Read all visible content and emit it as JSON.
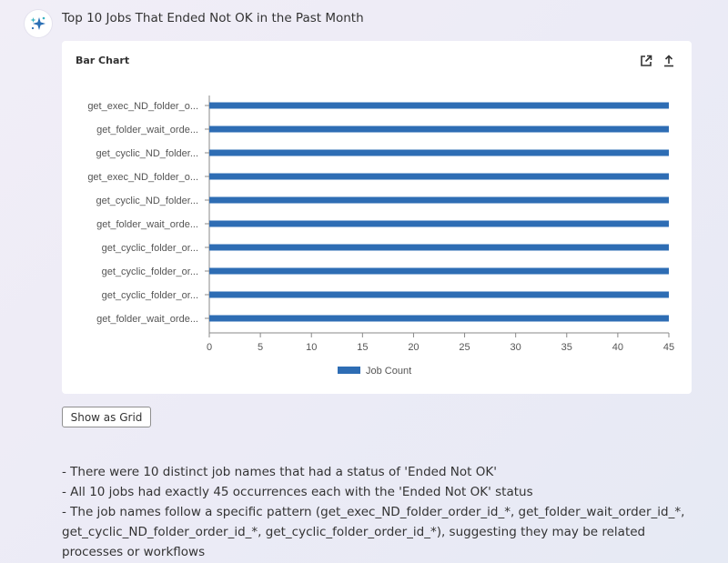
{
  "header": {
    "title": "Top 10 Jobs That Ended Not OK in the Past Month"
  },
  "card": {
    "title": "Bar Chart",
    "icons": [
      "open-external-icon",
      "export-icon"
    ]
  },
  "chart_data": {
    "type": "bar",
    "orientation": "horizontal",
    "categories": [
      "get_exec_ND_folder_o...",
      "get_folder_wait_orde...",
      "get_cyclic_ND_folder...",
      "get_exec_ND_folder_o...",
      "get_cyclic_ND_folder...",
      "get_folder_wait_orde...",
      "get_cyclic_folder_or...",
      "get_cyclic_folder_or...",
      "get_cyclic_folder_or...",
      "get_folder_wait_orde..."
    ],
    "series": [
      {
        "name": "Job Count",
        "values": [
          45,
          45,
          45,
          45,
          45,
          45,
          45,
          45,
          45,
          45
        ],
        "color": "#2e6db4"
      }
    ],
    "xlim": [
      0,
      45
    ],
    "xticks": [
      "0",
      "5",
      "10",
      "15",
      "20",
      "25",
      "30",
      "35",
      "40",
      "45"
    ],
    "grid": false,
    "legend_position": "bottom"
  },
  "actions": {
    "show_grid_label": "Show as Grid"
  },
  "summary": {
    "lines": [
      "- There were 10 distinct job names that had a status of 'Ended Not OK'",
      "- All 10 jobs had exactly 45 occurrences each with the 'Ended Not OK' status",
      "- The job names follow a specific pattern (get_exec_ND_folder_order_id_*, get_folder_wait_order_id_*, get_cyclic_ND_folder_order_id_*, get_cyclic_folder_order_id_*), suggesting they may be related processes or workflows"
    ]
  }
}
